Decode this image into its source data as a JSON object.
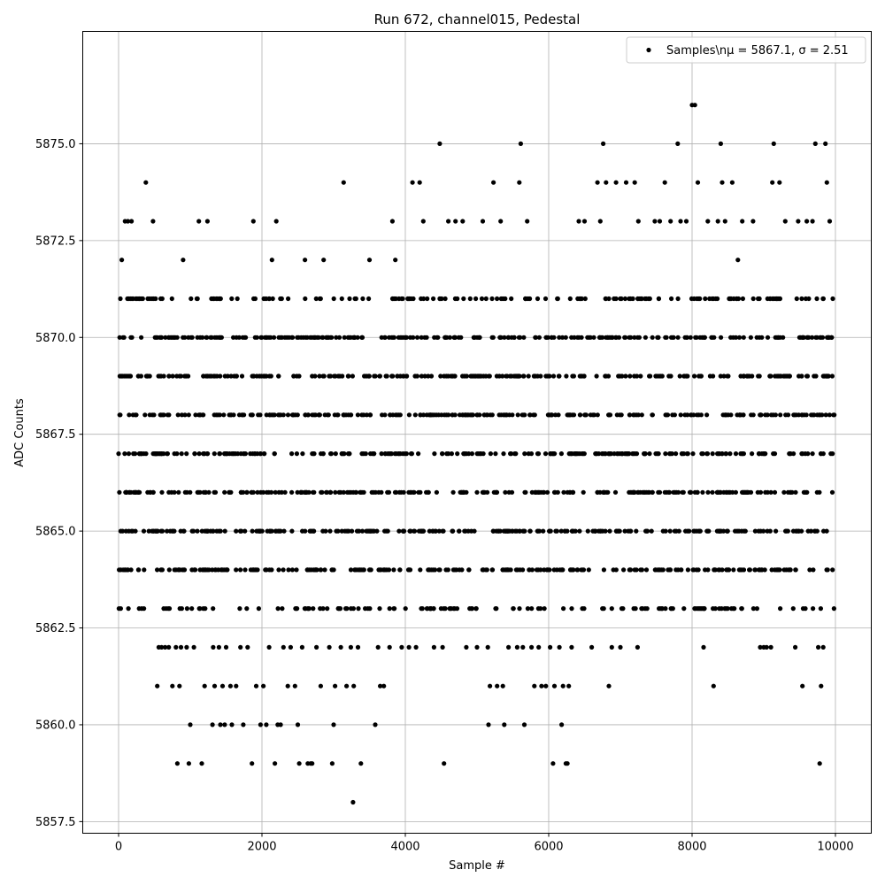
{
  "chart_data": {
    "type": "scatter",
    "title": "Run 672, channel015, Pedestal",
    "xlabel": "Sample #",
    "ylabel": "ADC Counts",
    "xlim": [
      -500,
      10500
    ],
    "ylim": [
      5857.2,
      5877.9
    ],
    "xticks": [
      0,
      2000,
      4000,
      6000,
      8000,
      10000
    ],
    "xtick_labels": [
      "0",
      "2000",
      "4000",
      "6000",
      "8000",
      "10000"
    ],
    "yticks": [
      5857.5,
      5860.0,
      5862.5,
      5865.0,
      5867.5,
      5870.0,
      5872.5,
      5875.0
    ],
    "ytick_labels": [
      "5857.5",
      "5860.0",
      "5862.5",
      "5865.0",
      "5867.5",
      "5870.0",
      "5872.5",
      "5875.0"
    ],
    "grid": true,
    "legend_position": "upper-right",
    "marker_color": "#000000",
    "series": [
      {
        "name": "Samples\\nμ = 5867.1, σ = 2.51",
        "legend_label": "Samples\\nμ = 5867.1, σ = 2.51",
        "x_range": [
          0,
          9999
        ],
        "mean": 5867.1,
        "std": 2.51,
        "integer_levels": [
          5863,
          5864,
          5865,
          5866,
          5867,
          5868,
          5869,
          5870,
          5871
        ],
        "points": [
          [
            5,
            5863
          ],
          [
            30,
            5863
          ],
          [
            45,
            5872
          ],
          [
            90,
            5873
          ],
          [
            130,
            5873
          ],
          [
            180,
            5873
          ],
          [
            380,
            5874
          ],
          [
            480,
            5873
          ],
          [
            560,
            5862
          ],
          [
            540,
            5861
          ],
          [
            600,
            5862
          ],
          [
            650,
            5862
          ],
          [
            700,
            5862
          ],
          [
            750,
            5861
          ],
          [
            800,
            5862
          ],
          [
            820,
            5859
          ],
          [
            850,
            5861
          ],
          [
            870,
            5862
          ],
          [
            900,
            5872
          ],
          [
            950,
            5862
          ],
          [
            980,
            5859
          ],
          [
            1000,
            5860
          ],
          [
            1050,
            5862
          ],
          [
            1120,
            5873
          ],
          [
            1160,
            5859
          ],
          [
            1200,
            5861
          ],
          [
            1240,
            5873
          ],
          [
            1310,
            5860
          ],
          [
            1320,
            5862
          ],
          [
            1340,
            5861
          ],
          [
            1400,
            5862
          ],
          [
            1420,
            5860
          ],
          [
            1450,
            5861
          ],
          [
            1480,
            5860
          ],
          [
            1500,
            5862
          ],
          [
            1560,
            5861
          ],
          [
            1580,
            5860
          ],
          [
            1640,
            5861
          ],
          [
            1700,
            5862
          ],
          [
            1740,
            5860
          ],
          [
            1800,
            5862
          ],
          [
            1860,
            5859
          ],
          [
            1880,
            5873
          ],
          [
            1920,
            5861
          ],
          [
            1980,
            5860
          ],
          [
            2020,
            5861
          ],
          [
            2060,
            5860
          ],
          [
            2100,
            5862
          ],
          [
            2140,
            5872
          ],
          [
            2180,
            5859
          ],
          [
            2200,
            5873
          ],
          [
            2220,
            5860
          ],
          [
            2260,
            5860
          ],
          [
            2300,
            5862
          ],
          [
            2360,
            5861
          ],
          [
            2400,
            5862
          ],
          [
            2460,
            5861
          ],
          [
            2500,
            5860
          ],
          [
            2520,
            5859
          ],
          [
            2560,
            5862
          ],
          [
            2600,
            5872
          ],
          [
            2640,
            5859
          ],
          [
            2680,
            5859
          ],
          [
            2700,
            5859
          ],
          [
            2760,
            5862
          ],
          [
            2820,
            5861
          ],
          [
            2860,
            5872
          ],
          [
            2940,
            5862
          ],
          [
            2980,
            5859
          ],
          [
            3000,
            5860
          ],
          [
            3020,
            5861
          ],
          [
            3100,
            5862
          ],
          [
            3140,
            5874
          ],
          [
            3180,
            5861
          ],
          [
            3240,
            5862
          ],
          [
            3270,
            5858
          ],
          [
            3280,
            5861
          ],
          [
            3340,
            5862
          ],
          [
            3380,
            5859
          ],
          [
            3500,
            5872
          ],
          [
            3580,
            5860
          ],
          [
            3620,
            5862
          ],
          [
            3650,
            5861
          ],
          [
            3700,
            5861
          ],
          [
            3780,
            5862
          ],
          [
            3820,
            5873
          ],
          [
            3860,
            5872
          ],
          [
            3950,
            5862
          ],
          [
            4050,
            5862
          ],
          [
            4100,
            5874
          ],
          [
            4150,
            5862
          ],
          [
            4200,
            5874
          ],
          [
            4250,
            5873
          ],
          [
            4400,
            5862
          ],
          [
            4480,
            5875
          ],
          [
            4520,
            5862
          ],
          [
            4540,
            5859
          ],
          [
            4600,
            5873
          ],
          [
            4700,
            5873
          ],
          [
            4800,
            5873
          ],
          [
            4850,
            5862
          ],
          [
            5000,
            5862
          ],
          [
            5080,
            5873
          ],
          [
            5150,
            5862
          ],
          [
            5160,
            5860
          ],
          [
            5180,
            5861
          ],
          [
            5230,
            5874
          ],
          [
            5280,
            5861
          ],
          [
            5330,
            5873
          ],
          [
            5360,
            5861
          ],
          [
            5380,
            5860
          ],
          [
            5440,
            5862
          ],
          [
            5560,
            5862
          ],
          [
            5590,
            5874
          ],
          [
            5610,
            5875
          ],
          [
            5640,
            5862
          ],
          [
            5660,
            5860
          ],
          [
            5700,
            5873
          ],
          [
            5760,
            5862
          ],
          [
            5800,
            5861
          ],
          [
            5860,
            5862
          ],
          [
            5900,
            5861
          ],
          [
            5960,
            5861
          ],
          [
            6020,
            5862
          ],
          [
            6060,
            5859
          ],
          [
            6080,
            5861
          ],
          [
            6150,
            5862
          ],
          [
            6180,
            5860
          ],
          [
            6200,
            5861
          ],
          [
            6240,
            5859
          ],
          [
            6260,
            5859
          ],
          [
            6280,
            5861
          ],
          [
            6320,
            5862
          ],
          [
            6420,
            5873
          ],
          [
            6500,
            5873
          ],
          [
            6600,
            5862
          ],
          [
            6680,
            5874
          ],
          [
            6720,
            5873
          ],
          [
            6760,
            5875
          ],
          [
            6800,
            5874
          ],
          [
            6840,
            5861
          ],
          [
            6880,
            5862
          ],
          [
            6940,
            5874
          ],
          [
            7000,
            5862
          ],
          [
            7080,
            5874
          ],
          [
            7200,
            5874
          ],
          [
            7240,
            5862
          ],
          [
            7250,
            5873
          ],
          [
            7480,
            5873
          ],
          [
            7550,
            5873
          ],
          [
            7620,
            5874
          ],
          [
            7700,
            5873
          ],
          [
            7800,
            5875
          ],
          [
            7840,
            5873
          ],
          [
            7920,
            5873
          ],
          [
            8000,
            5876
          ],
          [
            8040,
            5876
          ],
          [
            8080,
            5874
          ],
          [
            8160,
            5862
          ],
          [
            8220,
            5873
          ],
          [
            8300,
            5861
          ],
          [
            8360,
            5873
          ],
          [
            8400,
            5875
          ],
          [
            8420,
            5874
          ],
          [
            8460,
            5873
          ],
          [
            8560,
            5874
          ],
          [
            8640,
            5872
          ],
          [
            8700,
            5873
          ],
          [
            8850,
            5873
          ],
          [
            8950,
            5862
          ],
          [
            9000,
            5862
          ],
          [
            9040,
            5862
          ],
          [
            9100,
            5862
          ],
          [
            9120,
            5874
          ],
          [
            9140,
            5875
          ],
          [
            9220,
            5874
          ],
          [
            9300,
            5873
          ],
          [
            9440,
            5862
          ],
          [
            9480,
            5873
          ],
          [
            9540,
            5861
          ],
          [
            9600,
            5873
          ],
          [
            9680,
            5873
          ],
          [
            9720,
            5875
          ],
          [
            9760,
            5862
          ],
          [
            9780,
            5859
          ],
          [
            9800,
            5861
          ],
          [
            9830,
            5862
          ],
          [
            9860,
            5875
          ],
          [
            9880,
            5874
          ],
          [
            9920,
            5873
          ],
          [
            9980,
            5863
          ]
        ]
      }
    ]
  }
}
